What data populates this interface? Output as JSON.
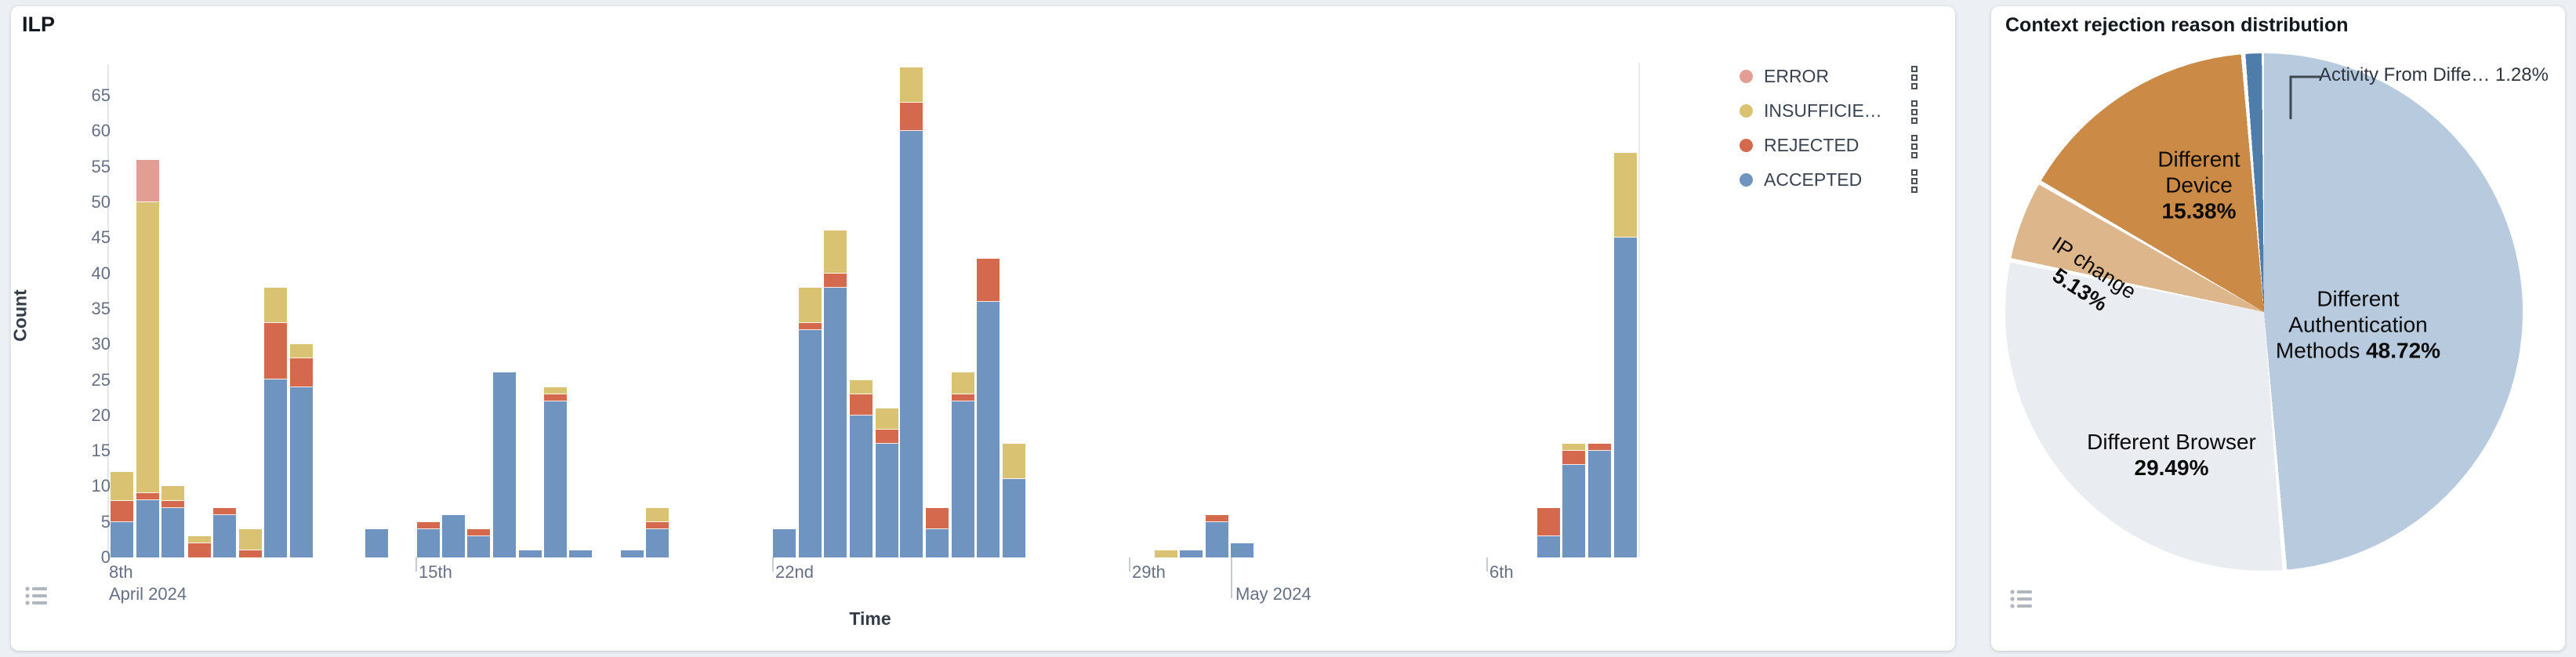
{
  "ilp_panel": {
    "title": "ILP",
    "y_axis": {
      "title": "Count",
      "tick_labels": [
        0,
        5,
        10,
        15,
        20,
        25,
        30,
        35,
        40,
        45,
        50,
        55,
        60,
        65
      ]
    },
    "x_axis": {
      "title": "Time",
      "day_ticks": [
        {
          "x": 125,
          "label": "8th",
          "tick": false
        },
        {
          "x": 520,
          "label": "15th",
          "tick": true
        },
        {
          "x": 975,
          "label": "22nd",
          "tick": true
        },
        {
          "x": 1430,
          "label": "29th",
          "tick": true
        },
        {
          "x": 1886,
          "label": "6th",
          "tick": true
        }
      ],
      "month_labels": [
        {
          "x": 125,
          "label": "April 2024",
          "tick": false
        },
        {
          "x": 1562,
          "label": "May 2024",
          "tick": true
        }
      ]
    },
    "legend": [
      {
        "key": "error",
        "label": "ERROR",
        "color": "#e39e93"
      },
      {
        "key": "insufficient",
        "label": "INSUFFICIE…",
        "color": "#d9c372"
      },
      {
        "key": "rejected",
        "label": "REJECTED",
        "color": "#d5694d"
      },
      {
        "key": "accepted",
        "label": "ACCEPTED",
        "color": "#6f94bf"
      }
    ]
  },
  "pie_panel": {
    "title": "Context rejection reason distribution",
    "callout_label": "Activity From Diffe…  1.28%"
  },
  "chart_data": [
    {
      "type": "bar",
      "title": "ILP",
      "stacked": true,
      "ylabel": "Count",
      "xlabel": "Time",
      "ylim": [
        0,
        65
      ],
      "x_unit": "12-hour buckets, Apr 9 – May 8 2024",
      "series_order": [
        "accepted",
        "rejected",
        "insufficient",
        "error"
      ],
      "series_colors": {
        "accepted": "#6f94bf",
        "rejected": "#d5694d",
        "insufficient": "#d9c372",
        "error": "#e39e93"
      },
      "bars": [
        {
          "time": "Apr 9 00:00",
          "x": 127,
          "accepted": 5,
          "rejected": 3,
          "insufficient": 4,
          "error": 0
        },
        {
          "time": "Apr 9 12:00",
          "x": 160,
          "accepted": 8,
          "rejected": 1,
          "insufficient": 41,
          "error": 6
        },
        {
          "time": "Apr 10 00:00",
          "x": 192,
          "accepted": 7,
          "rejected": 1,
          "insufficient": 2,
          "error": 0
        },
        {
          "time": "Apr 10 12:00",
          "x": 226,
          "accepted": 0,
          "rejected": 2,
          "insufficient": 1,
          "error": 0
        },
        {
          "time": "Apr 11 00:00",
          "x": 258,
          "accepted": 6,
          "rejected": 1,
          "insufficient": 0,
          "error": 0
        },
        {
          "time": "Apr 11 12:00",
          "x": 291,
          "accepted": 0,
          "rejected": 1,
          "insufficient": 3,
          "error": 0
        },
        {
          "time": "Apr 12 00:00",
          "x": 323,
          "accepted": 25,
          "rejected": 8,
          "insufficient": 5,
          "error": 0
        },
        {
          "time": "Apr 12 12:00",
          "x": 356,
          "accepted": 24,
          "rejected": 4,
          "insufficient": 2,
          "error": 0
        },
        {
          "time": "Apr 14 00:00",
          "x": 452,
          "accepted": 4,
          "rejected": 0,
          "insufficient": 0,
          "error": 0
        },
        {
          "time": "Apr 15 00:00",
          "x": 518,
          "accepted": 4,
          "rejected": 1,
          "insufficient": 0,
          "error": 0
        },
        {
          "time": "Apr 15 12:00",
          "x": 550,
          "accepted": 6,
          "rejected": 0,
          "insufficient": 0,
          "error": 0
        },
        {
          "time": "Apr 16 00:00",
          "x": 582,
          "accepted": 3,
          "rejected": 1,
          "insufficient": 0,
          "error": 0
        },
        {
          "time": "Apr 16 12:00",
          "x": 615,
          "accepted": 26,
          "rejected": 0,
          "insufficient": 0,
          "error": 0
        },
        {
          "time": "Apr 17 00:00",
          "x": 648,
          "accepted": 1,
          "rejected": 0,
          "insufficient": 0,
          "error": 0
        },
        {
          "time": "Apr 17 12:00",
          "x": 680,
          "accepted": 22,
          "rejected": 1,
          "insufficient": 1,
          "error": 0
        },
        {
          "time": "Apr 18 00:00",
          "x": 712,
          "accepted": 1,
          "rejected": 0,
          "insufficient": 0,
          "error": 0
        },
        {
          "time": "Apr 19 00:00",
          "x": 778,
          "accepted": 1,
          "rejected": 0,
          "insufficient": 0,
          "error": 0
        },
        {
          "time": "Apr 19 12:00",
          "x": 810,
          "accepted": 4,
          "rejected": 1,
          "insufficient": 2,
          "error": 0
        },
        {
          "time": "Apr 22 00:00",
          "x": 972,
          "accepted": 4,
          "rejected": 0,
          "insufficient": 0,
          "error": 0
        },
        {
          "time": "Apr 22 12:00",
          "x": 1005,
          "accepted": 32,
          "rejected": 1,
          "insufficient": 5,
          "error": 0
        },
        {
          "time": "Apr 23 00:00",
          "x": 1037,
          "accepted": 38,
          "rejected": 2,
          "insufficient": 6,
          "error": 0
        },
        {
          "time": "Apr 23 12:00",
          "x": 1070,
          "accepted": 20,
          "rejected": 3,
          "insufficient": 2,
          "error": 0
        },
        {
          "time": "Apr 24 00:00",
          "x": 1103,
          "accepted": 16,
          "rejected": 2,
          "insufficient": 3,
          "error": 0
        },
        {
          "time": "Apr 24 12:00",
          "x": 1134,
          "accepted": 60,
          "rejected": 4,
          "insufficient": 5,
          "error": 0
        },
        {
          "time": "Apr 25 00:00",
          "x": 1167,
          "accepted": 4,
          "rejected": 3,
          "insufficient": 0,
          "error": 0
        },
        {
          "time": "Apr 25 12:00",
          "x": 1200,
          "accepted": 22,
          "rejected": 1,
          "insufficient": 3,
          "error": 0
        },
        {
          "time": "Apr 26 00:00",
          "x": 1232,
          "accepted": 36,
          "rejected": 6,
          "insufficient": 0,
          "error": 0
        },
        {
          "time": "Apr 26 12:00",
          "x": 1265,
          "accepted": 11,
          "rejected": 0,
          "insufficient": 5,
          "error": 0
        },
        {
          "time": "Apr 29 12:00",
          "x": 1459,
          "accepted": 0,
          "rejected": 0,
          "insufficient": 1,
          "error": 0
        },
        {
          "time": "Apr 30 00:00",
          "x": 1491,
          "accepted": 1,
          "rejected": 0,
          "insufficient": 0,
          "error": 0
        },
        {
          "time": "Apr 30 12:00",
          "x": 1524,
          "accepted": 5,
          "rejected": 1,
          "insufficient": 0,
          "error": 0
        },
        {
          "time": "May 1 00:00",
          "x": 1556,
          "accepted": 2,
          "rejected": 0,
          "insufficient": 0,
          "error": 0
        },
        {
          "time": "May 7 00:00",
          "x": 1947,
          "accepted": 3,
          "rejected": 4,
          "insufficient": 0,
          "error": 0
        },
        {
          "time": "May 7 12:00",
          "x": 1979,
          "accepted": 13,
          "rejected": 2,
          "insufficient": 1,
          "error": 0
        },
        {
          "time": "May 8 00:00",
          "x": 2012,
          "accepted": 15,
          "rejected": 1,
          "insufficient": 0,
          "error": 0
        },
        {
          "time": "May 8 12:00",
          "x": 2045,
          "accepted": 45,
          "rejected": 0,
          "insufficient": 12,
          "error": 0
        }
      ]
    },
    {
      "type": "pie",
      "title": "Context rejection reason distribution",
      "legend_position": "none",
      "slices": [
        {
          "name": "Different Authentication Methods",
          "pct": 48.72,
          "pct_label": "48.72%",
          "color": "#b7cade"
        },
        {
          "name": "Different Browser",
          "pct": 29.49,
          "pct_label": "29.49%",
          "color": "#e9ecf1"
        },
        {
          "name": "IP change",
          "pct": 5.13,
          "pct_label": "5.13%",
          "color": "#deb68c"
        },
        {
          "name": "Different Device",
          "pct": 15.38,
          "pct_label": "15.38%",
          "color": "#cb8a45"
        },
        {
          "name": "Activity From Diffe…",
          "pct": 1.28,
          "pct_label": "1.28%",
          "color": "#4e7cab"
        }
      ]
    }
  ],
  "colors": {
    "page_bg": "#eceff3",
    "panel_bg": "#ffffff",
    "axis_text": "#667085",
    "axis_line": "#e3e6eb",
    "title_text": "#13181f"
  }
}
